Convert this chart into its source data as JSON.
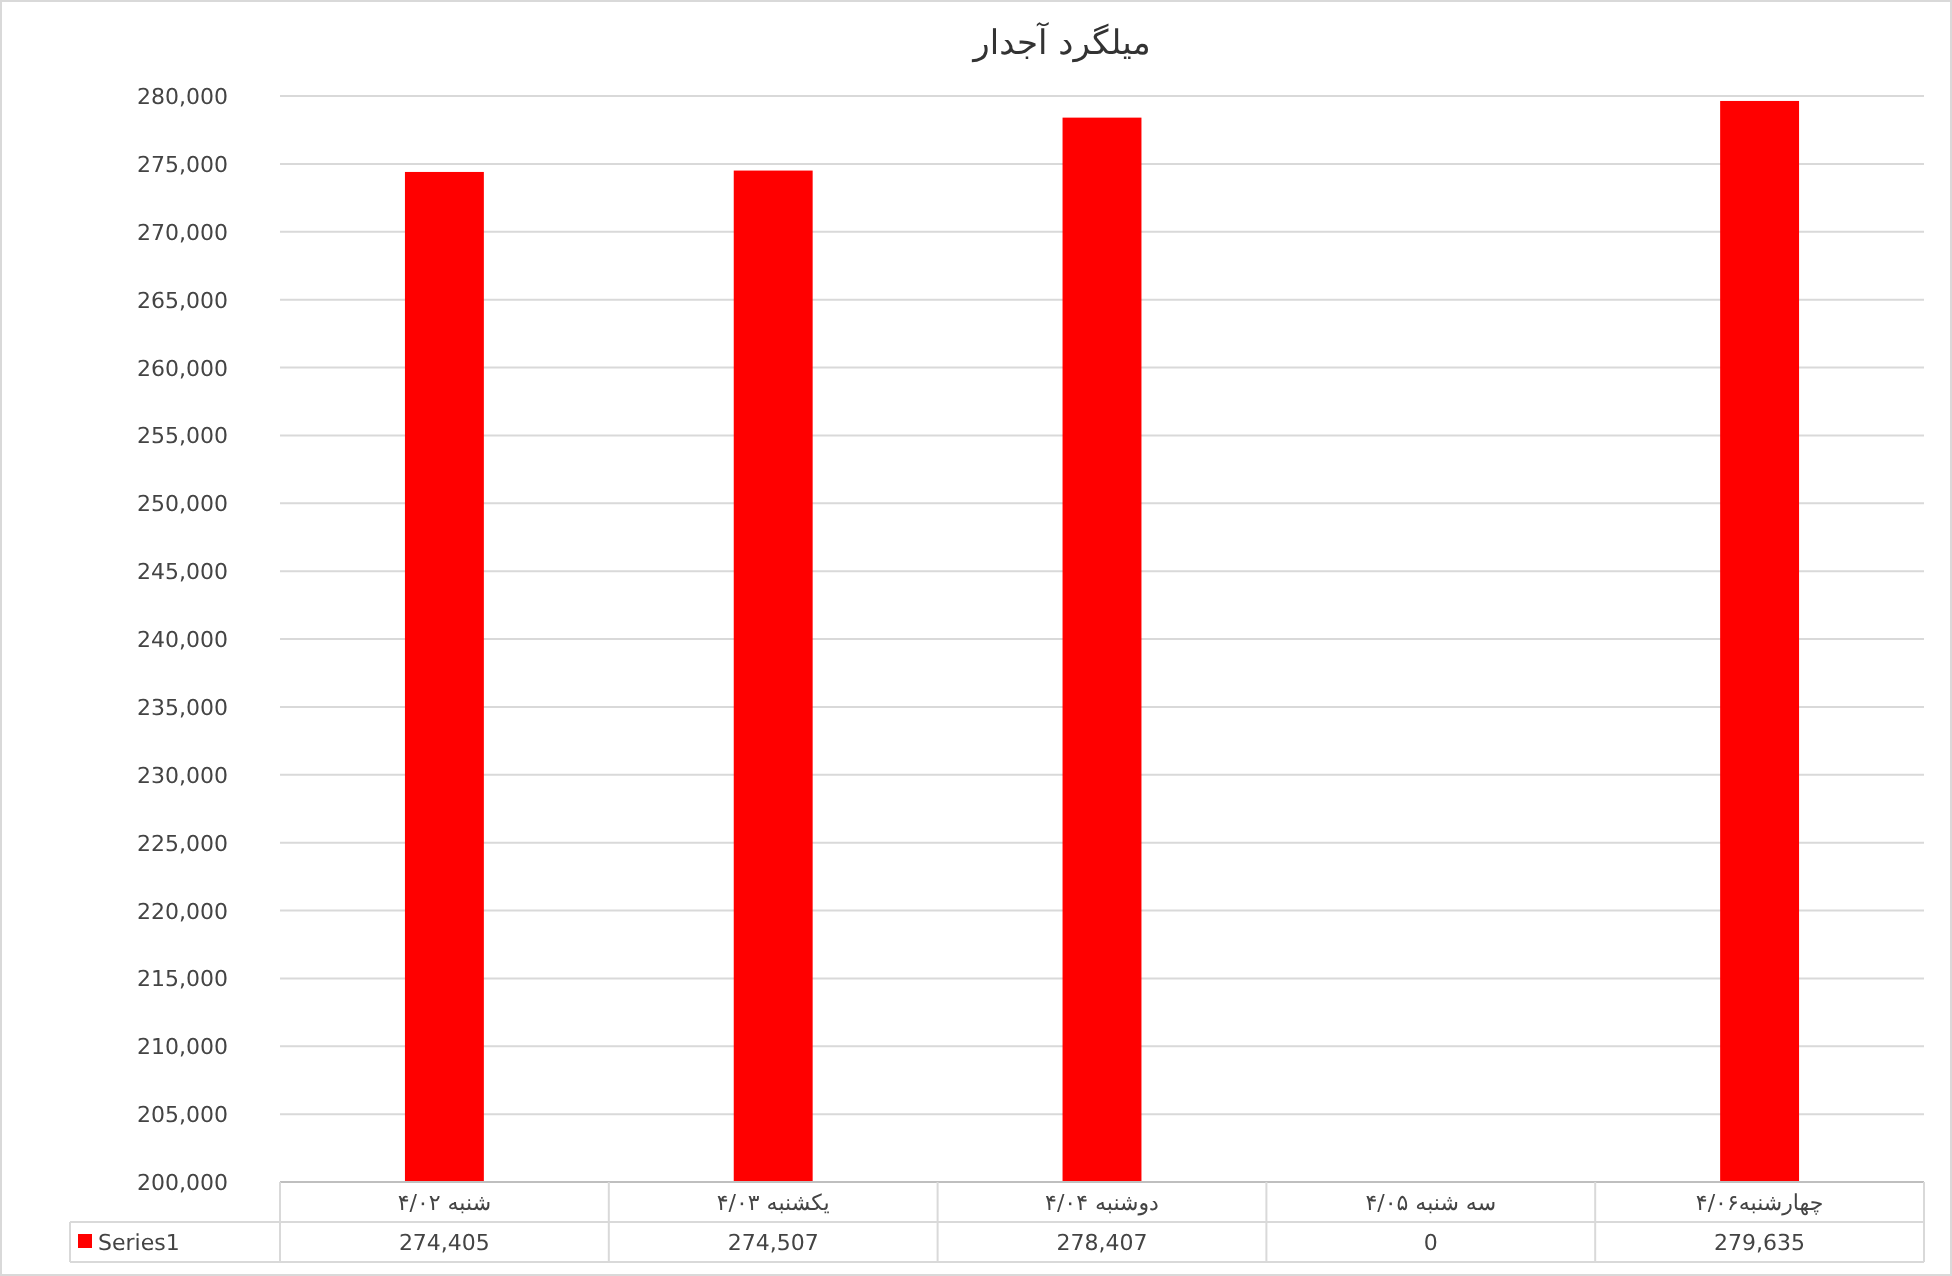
{
  "chart_data": {
    "type": "bar",
    "title": "میلگرد آجدار",
    "categories": [
      "شنبه ۴/۰۲",
      "یکشنبه ۴/۰۳",
      "دوشنبه ۴/۰۴",
      "سه شنبه ۴/۰۵",
      "چهارشنبه۴/۰۶"
    ],
    "series": [
      {
        "name": "Series1",
        "color": "#ff0000",
        "values": [
          274405,
          274507,
          278407,
          null,
          279635
        ],
        "value_labels": [
          "274,405",
          "274,507",
          "278,407",
          "0",
          "279,635"
        ]
      }
    ],
    "ylim": [
      200000,
      280000
    ],
    "yticks": [
      {
        "value": 200000,
        "label": "200,000"
      },
      {
        "value": 205000,
        "label": "205,000"
      },
      {
        "value": 210000,
        "label": "210,000"
      },
      {
        "value": 215000,
        "label": "215,000"
      },
      {
        "value": 220000,
        "label": "220,000"
      },
      {
        "value": 225000,
        "label": "225,000"
      },
      {
        "value": 230000,
        "label": "230,000"
      },
      {
        "value": 235000,
        "label": "235,000"
      },
      {
        "value": 240000,
        "label": "240,000"
      },
      {
        "value": 245000,
        "label": "245,000"
      },
      {
        "value": 250000,
        "label": "250,000"
      },
      {
        "value": 255000,
        "label": "255,000"
      },
      {
        "value": 260000,
        "label": "260,000"
      },
      {
        "value": 265000,
        "label": "265,000"
      },
      {
        "value": 270000,
        "label": "270,000"
      },
      {
        "value": 275000,
        "label": "275,000"
      },
      {
        "value": 280000,
        "label": "280,000"
      }
    ],
    "grid": "y",
    "legend": "bottom left"
  }
}
